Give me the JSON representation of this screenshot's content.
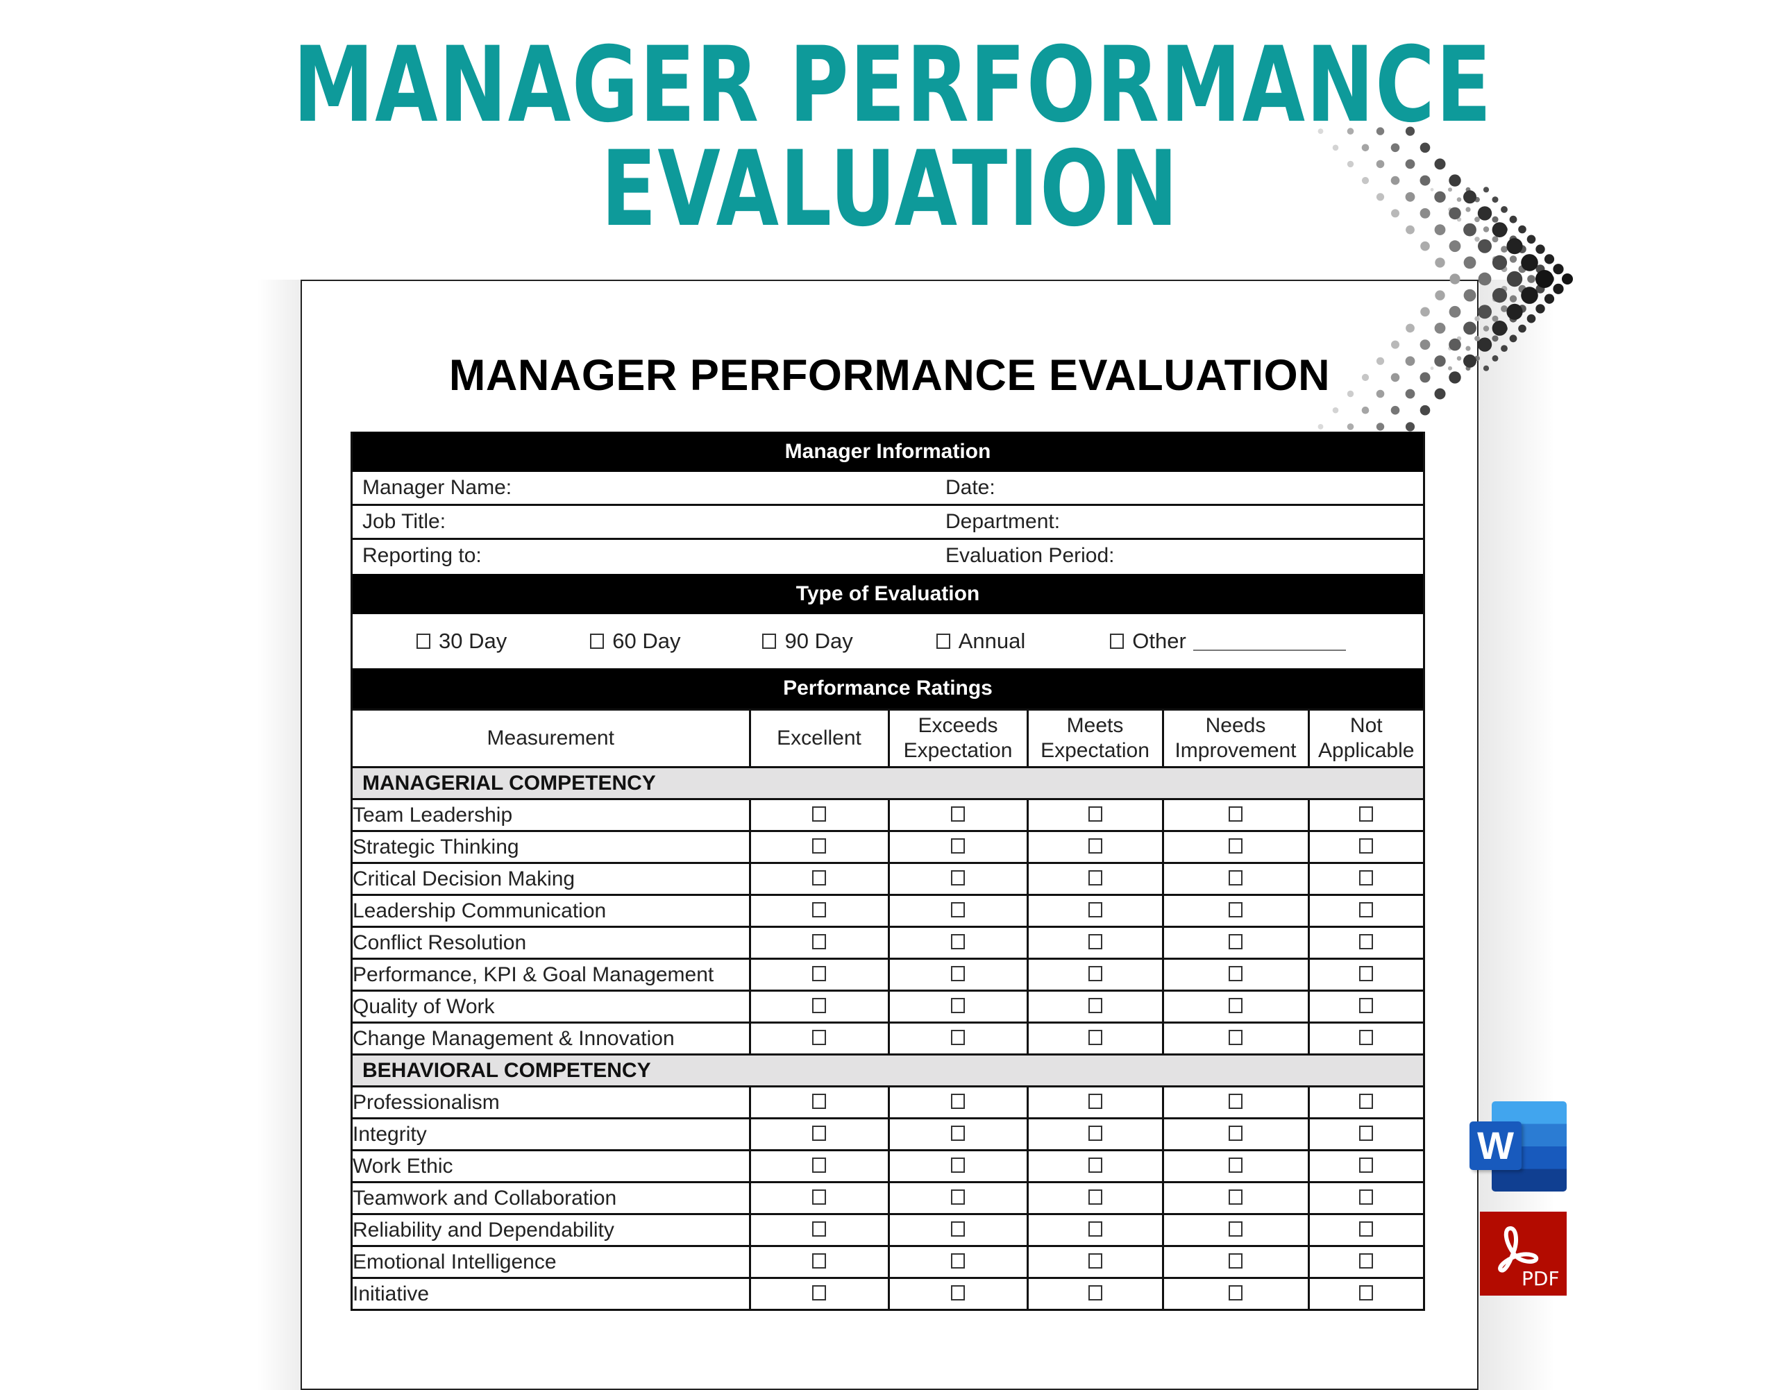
{
  "hero": {
    "line1": "MANAGER PERFORMANCE",
    "line2": "EVALUATION",
    "color": "#0e9a9a"
  },
  "document": {
    "title": "MANAGER PERFORMANCE EVALUATION",
    "manager_info": {
      "header": "Manager Information",
      "rows": [
        {
          "left": "Manager Name:",
          "right": "Date:"
        },
        {
          "left": "Job Title:",
          "right": "Department:"
        },
        {
          "left": "Reporting to:",
          "right": "Evaluation Period:"
        }
      ]
    },
    "evaluation_type": {
      "header": "Type of Evaluation",
      "options": [
        "30 Day",
        "60 Day",
        "90 Day",
        "Annual",
        "Other"
      ]
    },
    "ratings": {
      "header": "Performance Ratings",
      "columns": [
        "Measurement",
        "Excellent",
        "Exceeds Expectation",
        "Meets Expectation",
        "Needs Improvement",
        "Not Applicable"
      ],
      "sections": [
        {
          "title": "MANAGERIAL COMPETENCY",
          "items": [
            "Team Leadership",
            "Strategic Thinking",
            "Critical Decision Making",
            "Leadership Communication",
            "Conflict Resolution",
            "Performance, KPI & Goal Management",
            "Quality of Work",
            "Change Management & Innovation"
          ]
        },
        {
          "title": "BEHAVIORAL COMPETENCY",
          "items": [
            "Professionalism",
            "Integrity",
            "Work Ethic",
            "Teamwork and Collaboration",
            "Reliability and Dependability",
            "Emotional Intelligence",
            "Initiative"
          ]
        }
      ]
    }
  },
  "badges": {
    "word": {
      "letter": "W",
      "icon": "ms-word-icon"
    },
    "pdf": {
      "label": "PDF",
      "icon": "adobe-pdf-icon"
    }
  }
}
